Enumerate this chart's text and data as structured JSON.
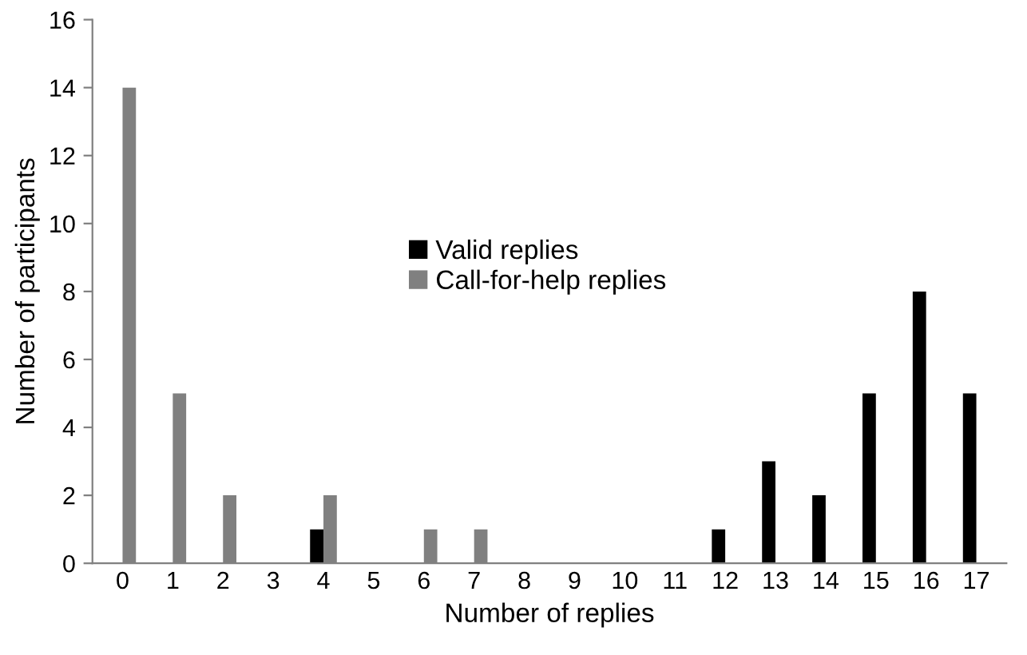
{
  "chart_data": {
    "type": "bar",
    "xlabel": "Number of replies",
    "ylabel": "Number of participants",
    "categories": [
      "0",
      "1",
      "2",
      "3",
      "4",
      "5",
      "6",
      "7",
      "8",
      "9",
      "10",
      "11",
      "12",
      "13",
      "14",
      "15",
      "16",
      "17"
    ],
    "series": [
      {
        "name": "Valid replies",
        "color": "#000000",
        "values": [
          null,
          null,
          null,
          null,
          1,
          null,
          null,
          null,
          null,
          null,
          null,
          null,
          1,
          3,
          2,
          5,
          8,
          5
        ]
      },
      {
        "name": "Call-for-help replies",
        "color": "#808080",
        "values": [
          14,
          5,
          2,
          null,
          2,
          null,
          1,
          1,
          null,
          null,
          null,
          null,
          null,
          null,
          null,
          null,
          null,
          null
        ]
      }
    ],
    "ylim": [
      0,
      16
    ],
    "yticks": [
      0,
      2,
      4,
      6,
      8,
      10,
      12,
      14,
      16
    ],
    "grid": false,
    "legend": "center"
  }
}
